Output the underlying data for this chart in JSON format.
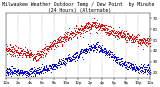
{
  "title": "Milwaukee Weather Outdoor Temp / Dew Point  by Minute  (24 Hours) (Alternate)",
  "temp_color": "#dd0000",
  "dew_color": "#0000dd",
  "background_color": "#ffffff",
  "grid_color": "#888888",
  "ylim": [
    15,
    75
  ],
  "xlim": [
    0,
    1440
  ],
  "title_fontsize": 3.5,
  "tick_fontsize": 2.8,
  "ytick_right": true,
  "noise_temp": 2.5,
  "noise_dew": 2.0,
  "dot_size": 0.5
}
